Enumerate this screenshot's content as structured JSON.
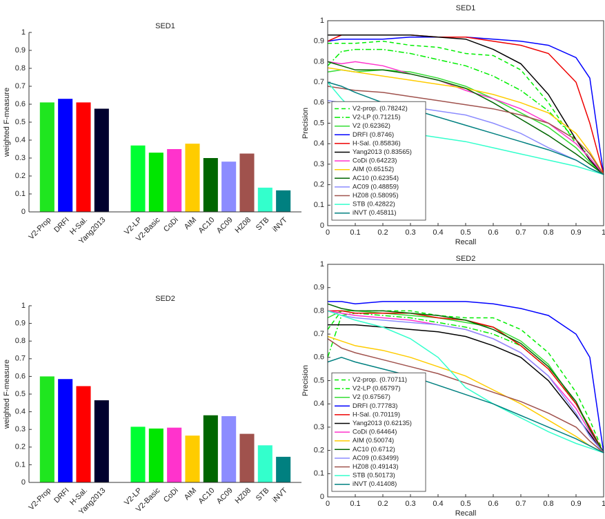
{
  "chart_data": [
    {
      "type": "bar",
      "title": "SED1",
      "ylabel": "weighted F-measure",
      "categories": [
        "V2-Prop",
        "DRFI",
        "H-Sal.",
        "Yang2013",
        null,
        "V2-LP",
        "V2-Basic",
        "CoDi",
        "AIM",
        "AC10",
        "AC09",
        "HZ08",
        "STB",
        "iNVT"
      ],
      "values": [
        0.61,
        0.63,
        0.61,
        0.575,
        null,
        0.37,
        0.33,
        0.35,
        0.38,
        0.3,
        0.28,
        0.325,
        0.135,
        0.12
      ],
      "colors": [
        "#1fe61f",
        "#0000ff",
        "#ff0000",
        "#00002e",
        null,
        "#00ff33",
        "#00e600",
        "#ff33cc",
        "#ffcc00",
        "#006600",
        "#8c8cff",
        "#a0524d",
        "#33ffcc",
        "#008080"
      ],
      "ylim": [
        0,
        1
      ],
      "yticks": [
        0,
        0.1,
        0.2,
        0.3,
        0.4,
        0.5,
        0.6,
        0.7,
        0.8,
        0.9,
        1
      ]
    },
    {
      "type": "line",
      "title": "SED1",
      "xlabel": "Recall",
      "ylabel": "Precision",
      "legend": "lower left",
      "x": [
        0,
        0.05,
        0.1,
        0.2,
        0.3,
        0.4,
        0.5,
        0.6,
        0.7,
        0.8,
        0.9,
        0.95,
        1
      ],
      "xlim": [
        0,
        1
      ],
      "ylim": [
        0,
        1
      ],
      "xticks": [
        0,
        0.1,
        0.2,
        0.3,
        0.4,
        0.5,
        0.6,
        0.7,
        0.8,
        0.9,
        1
      ],
      "yticks": [
        0,
        0.1,
        0.2,
        0.3,
        0.4,
        0.5,
        0.6,
        0.7,
        0.8,
        0.9,
        1
      ],
      "series": [
        {
          "name": "V2-prop. (0.78242)",
          "color": "#00ee00",
          "dash": "--",
          "values": [
            0.89,
            0.89,
            0.89,
            0.9,
            0.88,
            0.87,
            0.84,
            0.83,
            0.76,
            0.6,
            0.4,
            0.33,
            0.25
          ]
        },
        {
          "name": "V2-LP (0.71215)",
          "color": "#00ee00",
          "dash": "-.",
          "values": [
            0.78,
            0.85,
            0.86,
            0.86,
            0.84,
            0.81,
            0.78,
            0.73,
            0.66,
            0.56,
            0.42,
            0.33,
            0.25
          ]
        },
        {
          "name": "V2 (0.62362)",
          "color": "#33dd33",
          "values": [
            0.75,
            0.76,
            0.75,
            0.76,
            0.75,
            0.72,
            0.68,
            0.62,
            0.55,
            0.48,
            0.38,
            0.31,
            0.25
          ]
        },
        {
          "name": "DRFI (0.8746)",
          "color": "#0000ff",
          "values": [
            0.9,
            0.91,
            0.91,
            0.91,
            0.92,
            0.92,
            0.92,
            0.91,
            0.9,
            0.88,
            0.82,
            0.72,
            0.25
          ]
        },
        {
          "name": "H-Sal. (0.85836)",
          "color": "#ee0000",
          "values": [
            0.9,
            0.93,
            0.93,
            0.93,
            0.93,
            0.92,
            0.92,
            0.9,
            0.88,
            0.84,
            0.7,
            0.5,
            0.25
          ]
        },
        {
          "name": "Yang2013 (0.83565)",
          "color": "#000000",
          "values": [
            0.93,
            0.93,
            0.93,
            0.93,
            0.93,
            0.92,
            0.91,
            0.86,
            0.79,
            0.64,
            0.42,
            0.32,
            0.25
          ]
        },
        {
          "name": "CoDi (0.64223)",
          "color": "#ff33cc",
          "values": [
            0.8,
            0.79,
            0.8,
            0.78,
            0.74,
            0.71,
            0.66,
            0.62,
            0.57,
            0.5,
            0.4,
            0.33,
            0.25
          ]
        },
        {
          "name": "AIM (0.65152)",
          "color": "#ffcc00",
          "values": [
            0.77,
            0.76,
            0.75,
            0.73,
            0.71,
            0.69,
            0.67,
            0.64,
            0.6,
            0.55,
            0.45,
            0.36,
            0.25
          ]
        },
        {
          "name": "AC10 (0.62354)",
          "color": "#006600",
          "values": [
            0.8,
            0.78,
            0.76,
            0.76,
            0.74,
            0.71,
            0.67,
            0.6,
            0.52,
            0.44,
            0.35,
            0.3,
            0.25
          ]
        },
        {
          "name": "AC09 (0.48859)",
          "color": "#8c8cff",
          "values": [
            0.61,
            0.6,
            0.6,
            0.59,
            0.58,
            0.56,
            0.54,
            0.5,
            0.45,
            0.38,
            0.32,
            0.28,
            0.25
          ]
        },
        {
          "name": "HZ08 (0.58095)",
          "color": "#a0524d",
          "values": [
            0.68,
            0.67,
            0.66,
            0.65,
            0.63,
            0.61,
            0.59,
            0.57,
            0.54,
            0.5,
            0.42,
            0.35,
            0.25
          ]
        },
        {
          "name": "STB (0.42822)",
          "color": "#33ffcc",
          "values": [
            0.7,
            0.62,
            0.55,
            0.48,
            0.45,
            0.43,
            0.41,
            0.38,
            0.35,
            0.32,
            0.29,
            0.27,
            0.25
          ]
        },
        {
          "name": "iNVT (0.45811)",
          "color": "#008080",
          "values": [
            0.7,
            0.68,
            0.65,
            0.6,
            0.57,
            0.53,
            0.49,
            0.45,
            0.41,
            0.37,
            0.32,
            0.28,
            0.25
          ]
        }
      ]
    },
    {
      "type": "bar",
      "title": "SED2",
      "ylabel": "weighted F-measure",
      "categories": [
        "V2-Prop",
        "DRFI",
        "H-Sal.",
        "Yang2013",
        null,
        "V2-LP",
        "V2-Basic",
        "CoDi",
        "AIM",
        "AC10",
        "AC09",
        "HZ08",
        "STB",
        "iNVT"
      ],
      "values": [
        0.6,
        0.585,
        0.545,
        0.465,
        null,
        0.315,
        0.305,
        0.31,
        0.265,
        0.38,
        0.375,
        0.275,
        0.21,
        0.145
      ],
      "colors": [
        "#1fe61f",
        "#0000ff",
        "#ff0000",
        "#00002e",
        null,
        "#00ff33",
        "#00e600",
        "#ff33cc",
        "#ffcc00",
        "#006600",
        "#8c8cff",
        "#a0524d",
        "#33ffcc",
        "#008080"
      ],
      "ylim": [
        0,
        1
      ],
      "yticks": [
        0,
        0.1,
        0.2,
        0.3,
        0.4,
        0.5,
        0.6,
        0.7,
        0.8,
        0.9,
        1
      ]
    },
    {
      "type": "line",
      "title": "SED2",
      "xlabel": "Recall",
      "ylabel": "Precision",
      "legend": "lower left",
      "x": [
        0,
        0.05,
        0.1,
        0.2,
        0.3,
        0.4,
        0.5,
        0.6,
        0.7,
        0.8,
        0.9,
        0.95,
        1
      ],
      "xlim": [
        0,
        1
      ],
      "ylim": [
        0,
        1
      ],
      "xticks": [
        0,
        0.1,
        0.2,
        0.3,
        0.4,
        0.5,
        0.6,
        0.7,
        0.8,
        0.9,
        1
      ],
      "yticks": [
        0,
        0.1,
        0.2,
        0.3,
        0.4,
        0.5,
        0.6,
        0.7,
        0.8,
        0.9,
        1
      ],
      "series": [
        {
          "name": "V2-prop. (0.70711)",
          "color": "#00ee00",
          "dash": "--",
          "values": [
            0.72,
            0.8,
            0.8,
            0.8,
            0.8,
            0.78,
            0.77,
            0.77,
            0.72,
            0.62,
            0.45,
            0.33,
            0.19
          ]
        },
        {
          "name": "V2-LP (0.65797)",
          "color": "#00ee00",
          "dash": "-.",
          "values": [
            0.6,
            0.78,
            0.79,
            0.78,
            0.77,
            0.75,
            0.73,
            0.7,
            0.65,
            0.55,
            0.4,
            0.3,
            0.19
          ]
        },
        {
          "name": "V2 (0.67567)",
          "color": "#33dd33",
          "values": [
            0.77,
            0.8,
            0.8,
            0.79,
            0.78,
            0.77,
            0.75,
            0.73,
            0.67,
            0.57,
            0.4,
            0.29,
            0.19
          ]
        },
        {
          "name": "DRFI (0.77783)",
          "color": "#0000ff",
          "values": [
            0.84,
            0.84,
            0.83,
            0.84,
            0.84,
            0.84,
            0.84,
            0.83,
            0.81,
            0.78,
            0.7,
            0.6,
            0.19
          ]
        },
        {
          "name": "H-Sal. (0.70119)",
          "color": "#ee0000",
          "values": [
            0.8,
            0.8,
            0.79,
            0.79,
            0.79,
            0.77,
            0.76,
            0.73,
            0.65,
            0.55,
            0.4,
            0.3,
            0.19
          ]
        },
        {
          "name": "Yang2013 (0.62135)",
          "color": "#000000",
          "values": [
            0.74,
            0.74,
            0.74,
            0.73,
            0.72,
            0.71,
            0.69,
            0.65,
            0.6,
            0.5,
            0.35,
            0.27,
            0.19
          ]
        },
        {
          "name": "CoDi (0.64464)",
          "color": "#ff33cc",
          "values": [
            0.8,
            0.79,
            0.78,
            0.77,
            0.76,
            0.74,
            0.72,
            0.68,
            0.62,
            0.52,
            0.38,
            0.28,
            0.19
          ]
        },
        {
          "name": "AIM (0.50074)",
          "color": "#ffcc00",
          "values": [
            0.69,
            0.67,
            0.65,
            0.63,
            0.6,
            0.56,
            0.52,
            0.46,
            0.4,
            0.33,
            0.26,
            0.22,
            0.19
          ]
        },
        {
          "name": "AC10 (0.6712)",
          "color": "#006600",
          "values": [
            0.83,
            0.81,
            0.8,
            0.8,
            0.79,
            0.78,
            0.76,
            0.72,
            0.66,
            0.56,
            0.41,
            0.29,
            0.19
          ]
        },
        {
          "name": "AC09 (0.63499)",
          "color": "#8c8cff",
          "values": [
            0.8,
            0.78,
            0.77,
            0.76,
            0.75,
            0.74,
            0.72,
            0.68,
            0.62,
            0.52,
            0.36,
            0.26,
            0.19
          ]
        },
        {
          "name": "HZ08 (0.49143)",
          "color": "#a0524d",
          "values": [
            0.68,
            0.64,
            0.62,
            0.59,
            0.56,
            0.53,
            0.49,
            0.45,
            0.41,
            0.36,
            0.3,
            0.24,
            0.19
          ]
        },
        {
          "name": "STB (0.50173)",
          "color": "#33ffcc",
          "values": [
            0.8,
            0.78,
            0.76,
            0.73,
            0.68,
            0.6,
            0.47,
            0.4,
            0.34,
            0.28,
            0.23,
            0.21,
            0.19
          ]
        },
        {
          "name": "iNVT (0.41408)",
          "color": "#008080",
          "values": [
            0.58,
            0.6,
            0.58,
            0.55,
            0.52,
            0.48,
            0.44,
            0.4,
            0.35,
            0.3,
            0.25,
            0.22,
            0.19
          ]
        }
      ]
    }
  ]
}
